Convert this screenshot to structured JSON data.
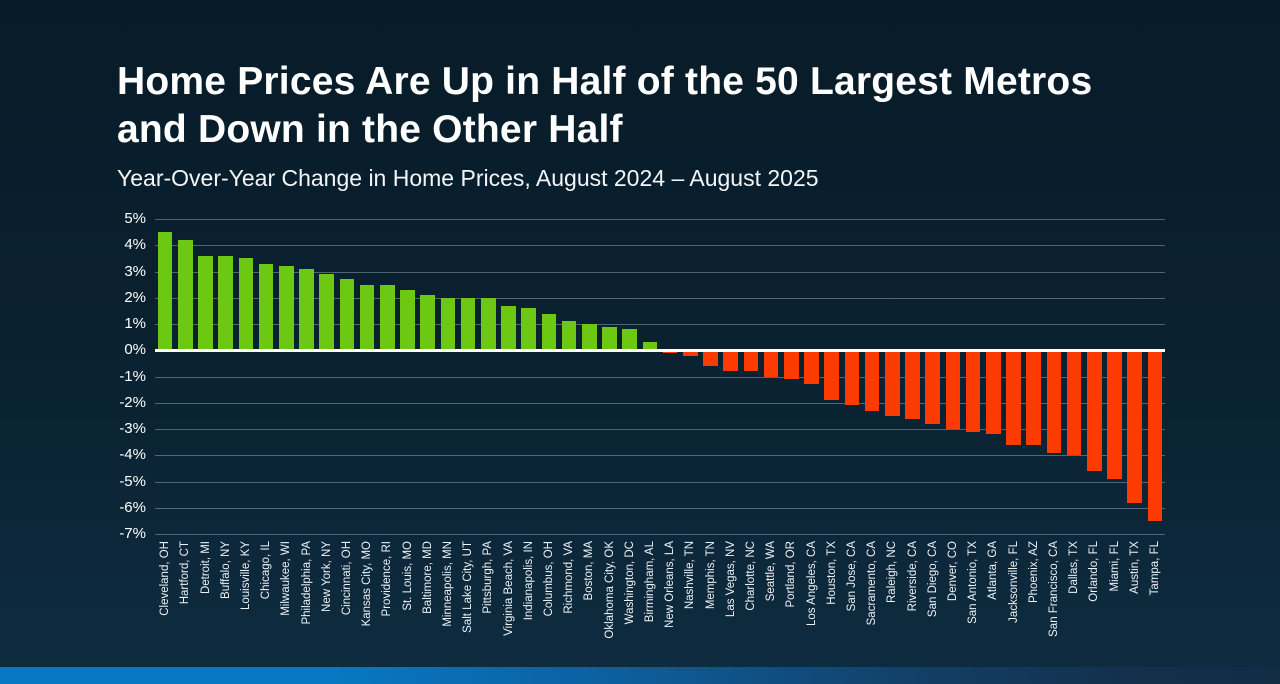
{
  "slide": {
    "title_lines": [
      "Home Prices Are Up in Half of the 50 Largest Metros",
      "and Down in the Other Half"
    ],
    "subtitle": "Year-Over-Year Change in Home Prices, August 2024 – August 2025"
  },
  "colors": {
    "background": "#0a2231",
    "positive_bar": "#6cc812",
    "negative_bar": "#fc3b03",
    "gridline": "rgba(168,182,192,0.45)",
    "zero_line": "#ffffff",
    "text": "#ffffff",
    "footer_band_left": "#0878c4",
    "footer_band_right": "#122c46"
  },
  "chart_data": {
    "type": "bar",
    "title": "Home Prices Are Up in Half of the 50 Largest Metros and Down in the Other Half",
    "subtitle": "Year-Over-Year Change in Home Prices, August 2024 – August 2025",
    "xlabel": "",
    "ylabel": "",
    "ylim": [
      -7,
      5
    ],
    "grid": true,
    "legend": false,
    "ytick_values": [
      5,
      4,
      3,
      2,
      1,
      0,
      -1,
      -2,
      -3,
      -4,
      -5,
      -6,
      -7
    ],
    "ytick_labels": [
      "5%",
      "4%",
      "3%",
      "2%",
      "1%",
      "0%",
      "-1%",
      "-2%",
      "-3%",
      "-4%",
      "-5%",
      "-6%",
      "-7%"
    ],
    "categories": [
      "Cleveland, OH",
      "Hartford, CT",
      "Detroit, MI",
      "Buffalo, NY",
      "Louisville, KY",
      "Chicago, IL",
      "Milwaukee, WI",
      "Philadelphia, PA",
      "New York, NY",
      "Cincinnati, OH",
      "Kansas City, MO",
      "Providence, RI",
      "St. Louis, MO",
      "Baltimore, MD",
      "Minneapolis, MN",
      "Salt Lake City, UT",
      "Pittsburgh, PA",
      "Virginia Beach, VA",
      "Indianapolis, IN",
      "Columbus, OH",
      "Richmond, VA",
      "Boston, MA",
      "Oklahoma City, OK",
      "Washington, DC",
      "Birmingham, AL",
      "New Orleans, LA",
      "Nashville, TN",
      "Memphis, TN",
      "Las Vegas, NV",
      "Charlotte, NC",
      "Seattle, WA",
      "Portland, OR",
      "Los Angeles, CA",
      "Houston, TX",
      "San Jose, CA",
      "Sacramento, CA",
      "Raleigh, NC",
      "Riverside, CA",
      "San Diego, CA",
      "Denver, CO",
      "San Antonio, TX",
      "Atlanta, GA",
      "Jacksonville, FL",
      "Phoenix, AZ",
      "San Francisco, CA",
      "Dallas, TX",
      "Orlando, FL",
      "Miami, FL",
      "Austin, TX",
      "Tampa, FL"
    ],
    "values": [
      4.5,
      4.2,
      3.6,
      3.6,
      3.5,
      3.3,
      3.2,
      3.1,
      2.9,
      2.7,
      2.5,
      2.5,
      2.3,
      2.1,
      2.0,
      2.0,
      2.0,
      1.7,
      1.6,
      1.4,
      1.1,
      1.0,
      0.9,
      0.8,
      0.3,
      -0.1,
      -0.2,
      -0.6,
      -0.8,
      -0.8,
      -1.0,
      -1.1,
      -1.3,
      -1.9,
      -2.1,
      -2.3,
      -2.5,
      -2.6,
      -2.8,
      -3.0,
      -3.1,
      -3.2,
      -3.6,
      -3.6,
      -3.9,
      -4.0,
      -4.6,
      -4.9,
      -5.8,
      -6.5
    ]
  },
  "layout_hints": {
    "positive_count": 25,
    "negative_count": 25
  }
}
